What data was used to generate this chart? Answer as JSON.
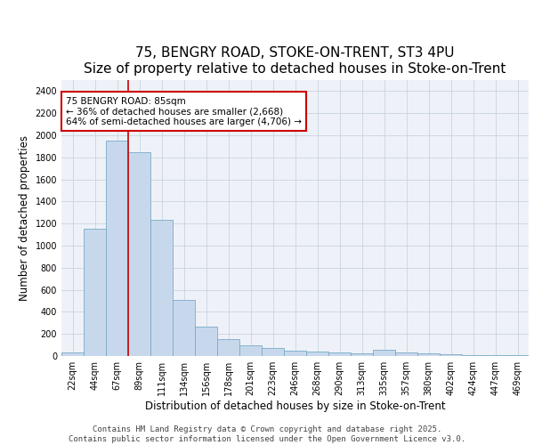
{
  "title1": "75, BENGRY ROAD, STOKE-ON-TRENT, ST3 4PU",
  "title2": "Size of property relative to detached houses in Stoke-on-Trent",
  "xlabel": "Distribution of detached houses by size in Stoke-on-Trent",
  "ylabel": "Number of detached properties",
  "categories": [
    "22sqm",
    "44sqm",
    "67sqm",
    "89sqm",
    "111sqm",
    "134sqm",
    "156sqm",
    "178sqm",
    "201sqm",
    "223sqm",
    "246sqm",
    "268sqm",
    "290sqm",
    "313sqm",
    "335sqm",
    "357sqm",
    "380sqm",
    "402sqm",
    "424sqm",
    "447sqm",
    "469sqm"
  ],
  "values": [
    30,
    1150,
    1950,
    1850,
    1230,
    510,
    270,
    155,
    100,
    70,
    50,
    38,
    32,
    28,
    55,
    30,
    25,
    20,
    10,
    5,
    5
  ],
  "bar_color": "#c8d8ec",
  "bar_edge_color": "#7aaac8",
  "grid_color": "#c8d4e0",
  "background_color": "#eef2f8",
  "annotation_text": "75 BENGRY ROAD: 85sqm\n← 36% of detached houses are smaller (2,668)\n64% of semi-detached houses are larger (4,706) →",
  "annotation_box_edge": "#cc0000",
  "vline_x": 2.5,
  "vline_color": "#cc0000",
  "ylim": [
    0,
    2500
  ],
  "yticks": [
    0,
    200,
    400,
    600,
    800,
    1000,
    1200,
    1400,
    1600,
    1800,
    2000,
    2200,
    2400
  ],
  "footer_line1": "Contains HM Land Registry data © Crown copyright and database right 2025.",
  "footer_line2": "Contains public sector information licensed under the Open Government Licence v3.0.",
  "title_fontsize": 11,
  "axis_label_fontsize": 8.5,
  "tick_fontsize": 7,
  "annotation_fontsize": 7.5,
  "footer_fontsize": 6.5
}
